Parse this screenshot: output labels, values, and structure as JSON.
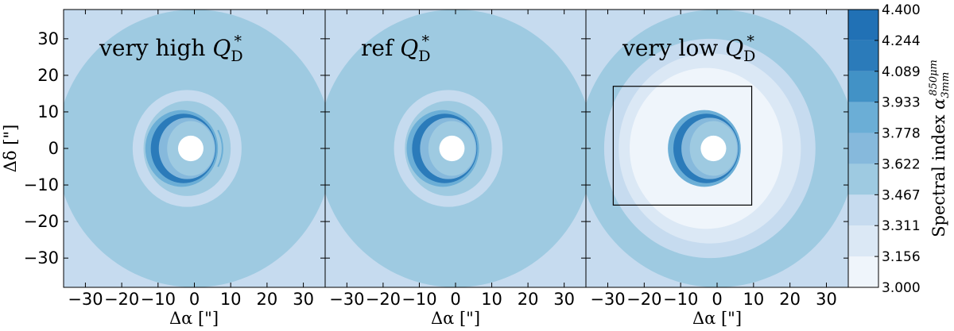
{
  "chart_data": {
    "type": "heatmap",
    "panels": [
      {
        "title_text": "very high",
        "title_symbol": "Q",
        "title_sub": "D",
        "title_sup": "*",
        "variant": "high"
      },
      {
        "title_text": "ref",
        "title_symbol": "Q",
        "title_sub": "D",
        "title_sup": "*",
        "variant": "ref"
      },
      {
        "title_text": "very low",
        "title_symbol": "Q",
        "title_sub": "D",
        "title_sup": "*",
        "variant": "low"
      }
    ],
    "xlabel": "Δα [\"]",
    "ylabel": "Δδ [\"]",
    "xlim": [
      -36,
      36
    ],
    "ylim": [
      -38,
      38
    ],
    "xticks": [
      -30,
      -20,
      -10,
      0,
      10,
      20,
      30
    ],
    "yticks": [
      -30,
      -20,
      -10,
      0,
      10,
      20,
      30
    ],
    "tick_labels": [
      "−30",
      "−20",
      "−10",
      "0",
      "10",
      "20",
      "30"
    ],
    "inset_box": {
      "panel": 2,
      "x": [
        -28.5,
        9.5
      ],
      "y": [
        -15.5,
        17
      ]
    },
    "colorbar": {
      "levels": [
        3.0,
        3.156,
        3.311,
        3.467,
        3.622,
        3.778,
        3.933,
        4.089,
        4.244,
        4.4
      ],
      "level_labels": [
        "3.000",
        "3.156",
        "3.311",
        "3.467",
        "3.622",
        "3.778",
        "3.933",
        "4.089",
        "4.244",
        "4.400"
      ],
      "colors": [
        "#eff5fb",
        "#dbe8f5",
        "#c6dbef",
        "#9ecae1",
        "#86b9dc",
        "#6baed6",
        "#4292c6",
        "#2b7bba",
        "#2171b5",
        "#08478f"
      ],
      "label_text": "Spectral index",
      "label_symbol": "α",
      "label_sub": "3mm",
      "label_sup": "850μm"
    }
  }
}
